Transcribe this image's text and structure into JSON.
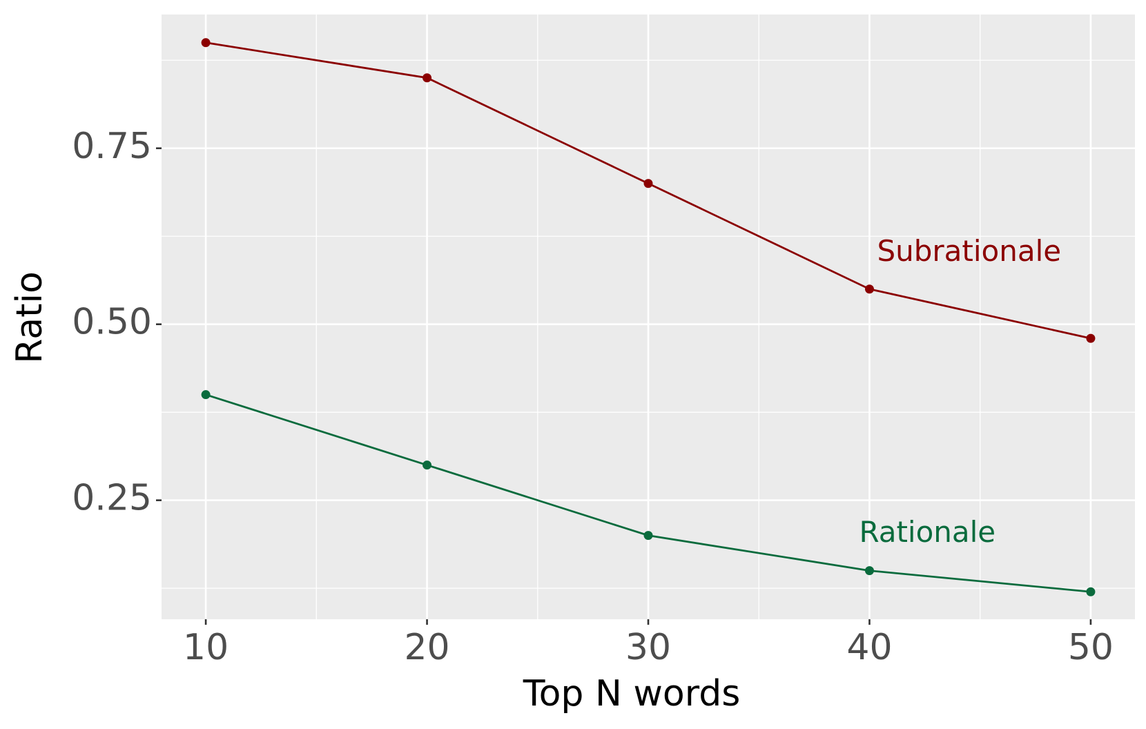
{
  "chart_data": {
    "type": "line",
    "x_label": "Top N words",
    "y_label": "Ratio",
    "x": [
      10,
      20,
      30,
      40,
      50
    ],
    "series": [
      {
        "name": "Subrationale",
        "color": "#8b0000",
        "values": [
          0.9,
          0.85,
          0.7,
          0.55,
          0.48
        ]
      },
      {
        "name": "Rationale",
        "color": "#0a6b3d",
        "values": [
          0.4,
          0.3,
          0.2,
          0.15,
          0.12
        ]
      }
    ],
    "xlim": [
      8,
      52
    ],
    "xticks": [
      10,
      20,
      30,
      40,
      50
    ],
    "ylim": [
      0.081,
      0.94
    ],
    "yticks": [
      0.25,
      {
        "value": 0.5,
        "label": "0.50"
      },
      0.75
    ],
    "grid": true,
    "minor_grid": true
  }
}
